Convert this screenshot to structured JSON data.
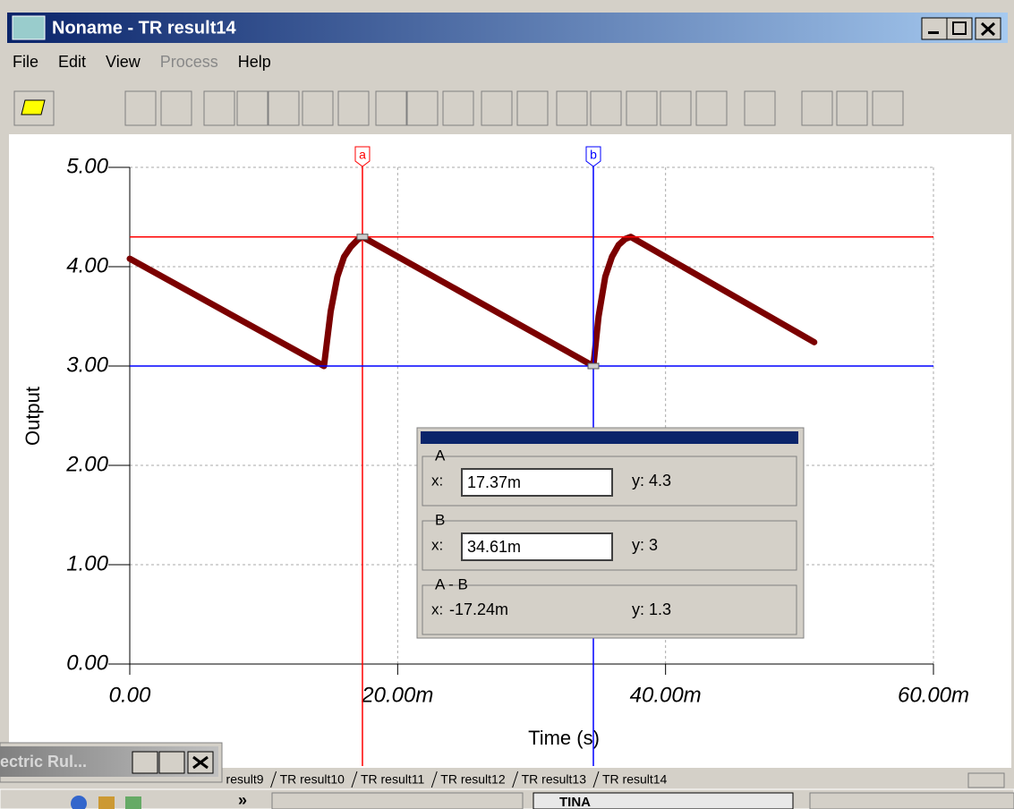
{
  "window": {
    "title": "Noname - TR result14",
    "menu": [
      {
        "label": "File",
        "enabled": true
      },
      {
        "label": "Edit",
        "enabled": true
      },
      {
        "label": "View",
        "enabled": true
      },
      {
        "label": "Process",
        "enabled": false
      },
      {
        "label": "Help",
        "enabled": true
      }
    ]
  },
  "chart_data": {
    "type": "line",
    "x_label": "Time (s)",
    "y_label": "Output",
    "xlim": [
      0,
      0.06
    ],
    "ylim": [
      0,
      5
    ],
    "xticks": [
      {
        "value": 0,
        "label": "0.00"
      },
      {
        "value": 0.02,
        "label": "20.00m"
      },
      {
        "value": 0.04,
        "label": "40.00m"
      },
      {
        "value": 0.06,
        "label": "60.00m"
      }
    ],
    "yticks": [
      {
        "value": 0,
        "label": "0.00"
      },
      {
        "value": 1,
        "label": "1.00"
      },
      {
        "value": 2,
        "label": "2.00"
      },
      {
        "value": 3,
        "label": "3.00"
      },
      {
        "value": 4,
        "label": "4.00"
      },
      {
        "value": 5,
        "label": "5.00"
      }
    ],
    "grid": true,
    "x": [
      0,
      0.0145,
      0.015,
      0.0155,
      0.016,
      0.0165,
      0.017,
      0.01737,
      0.03461,
      0.035,
      0.0355,
      0.036,
      0.0365,
      0.037,
      0.0374,
      0.0511
    ],
    "series": [
      {
        "name": "Output",
        "color": "#7b0000",
        "values": [
          4.08,
          3.0,
          3.55,
          3.9,
          4.1,
          4.2,
          4.27,
          4.3,
          3.0,
          3.5,
          3.9,
          4.1,
          4.22,
          4.28,
          4.3,
          3.24
        ]
      }
    ],
    "cursors": [
      {
        "name": "a",
        "x": 0.01737,
        "y": 4.3,
        "color": "#ff0000"
      },
      {
        "name": "b",
        "x": 0.03461,
        "y": 3,
        "color": "#0000ff"
      }
    ]
  },
  "cursor_panel": {
    "groups": [
      {
        "name": "A",
        "x_label": "x:",
        "x": "17.37m",
        "y": "y: 4.3"
      },
      {
        "name": "B",
        "x_label": "x:",
        "x": "34.61m",
        "y": "y: 3"
      },
      {
        "name": "A - B",
        "x_label": "x:",
        "x": "-17.24m",
        "y": "y: 1.3"
      }
    ]
  },
  "floating_window": {
    "title": "ectric Rul..."
  },
  "tabs": [
    "TR result9",
    "TR result10",
    "TR result11",
    "TR result12",
    "TR result13",
    "TR result14"
  ],
  "taskbar": {
    "items": [
      "»",
      "TINA"
    ]
  }
}
